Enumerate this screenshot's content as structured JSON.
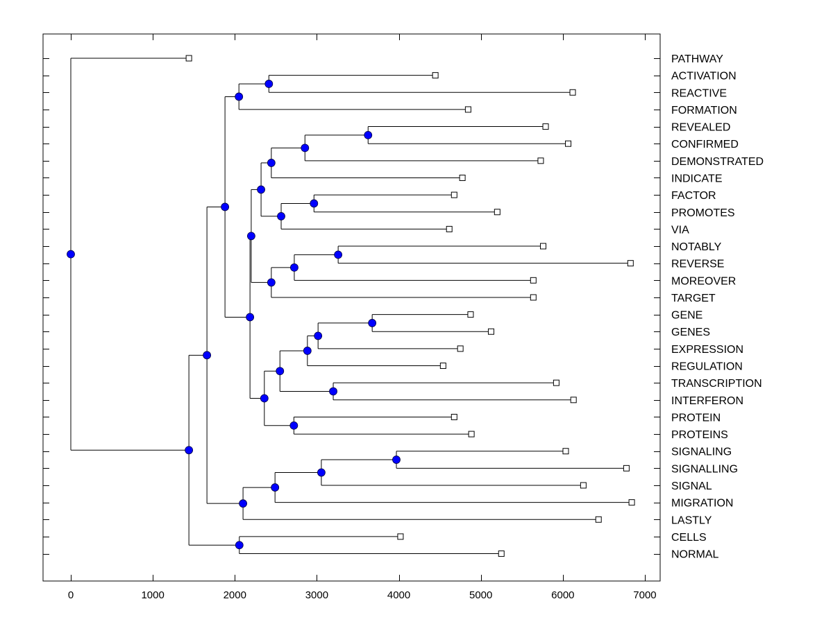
{
  "chart_data": {
    "type": "dendrogram",
    "title": "",
    "xlabel": "",
    "ylabel": "",
    "xlim": [
      -330,
      7200
    ],
    "xticks": [
      0,
      1000,
      2000,
      3000,
      4000,
      5000,
      6000,
      7000
    ],
    "xtick_labels": [
      "0",
      "1000",
      "2000",
      "3000",
      "4000",
      "5000",
      "6000",
      "7000"
    ],
    "grid": false,
    "node_color": "#0000FF",
    "leaf_marker": "open-square",
    "leaves": [
      {
        "label": "PATHWAY",
        "value": 1440
      },
      {
        "label": "ACTIVATION",
        "value": 4445
      },
      {
        "label": "REACTIVE",
        "value": 6120
      },
      {
        "label": "FORMATION",
        "value": 4845
      },
      {
        "label": "REVEALED",
        "value": 5790
      },
      {
        "label": "CONFIRMED",
        "value": 6065
      },
      {
        "label": "DEMONSTRATED",
        "value": 5730
      },
      {
        "label": "INDICATE",
        "value": 4775
      },
      {
        "label": "FACTOR",
        "value": 4675
      },
      {
        "label": "PROMOTES",
        "value": 5200
      },
      {
        "label": "VIA",
        "value": 4615
      },
      {
        "label": "NOTABLY",
        "value": 5760
      },
      {
        "label": "REVERSE",
        "value": 6825
      },
      {
        "label": "MOREOVER",
        "value": 5640
      },
      {
        "label": "TARGET",
        "value": 5640
      },
      {
        "label": "GENE",
        "value": 4875
      },
      {
        "label": "GENES",
        "value": 5125
      },
      {
        "label": "EXPRESSION",
        "value": 4750
      },
      {
        "label": "REGULATION",
        "value": 4540
      },
      {
        "label": "TRANSCRIPTION",
        "value": 5920
      },
      {
        "label": "INTERFERON",
        "value": 6130
      },
      {
        "label": "PROTEIN",
        "value": 4675
      },
      {
        "label": "PROTEINS",
        "value": 4885
      },
      {
        "label": "SIGNALING",
        "value": 6035
      },
      {
        "label": "SIGNALLING",
        "value": 6775
      },
      {
        "label": "SIGNAL",
        "value": 6250
      },
      {
        "label": "MIGRATION",
        "value": 6840
      },
      {
        "label": "LASTLY",
        "value": 6435
      },
      {
        "label": "CELLS",
        "value": 4020
      },
      {
        "label": "NORMAL",
        "value": 5250
      }
    ],
    "tree": {
      "value": 0,
      "children": [
        {
          "leaf": "PATHWAY"
        },
        {
          "value": 1440,
          "children": [
            {
              "value": 1660,
              "children": [
                {
                  "value": 1880,
                  "children": [
                    {
                      "value": 2050,
                      "children": [
                        {
                          "value": 2415,
                          "children": [
                            {
                              "leaf": "ACTIVATION"
                            },
                            {
                              "leaf": "REACTIVE"
                            }
                          ]
                        },
                        {
                          "leaf": "FORMATION"
                        }
                      ]
                    },
                    {
                      "value": 2185,
                      "children": [
                        {
                          "value": 2200,
                          "children": [
                            {
                              "value": 2320,
                              "children": [
                                {
                                  "value": 2445,
                                  "children": [
                                    {
                                      "value": 2855,
                                      "children": [
                                        {
                                          "value": 3625,
                                          "children": [
                                            {
                                              "leaf": "REVEALED"
                                            },
                                            {
                                              "leaf": "CONFIRMED"
                                            }
                                          ]
                                        },
                                        {
                                          "leaf": "DEMONSTRATED"
                                        }
                                      ]
                                    },
                                    {
                                      "leaf": "INDICATE"
                                    }
                                  ]
                                },
                                {
                                  "value": 2565,
                                  "children": [
                                    {
                                      "value": 2965,
                                      "children": [
                                        {
                                          "leaf": "FACTOR"
                                        },
                                        {
                                          "leaf": "PROMOTES"
                                        }
                                      ]
                                    },
                                    {
                                      "leaf": "VIA"
                                    }
                                  ]
                                }
                              ]
                            },
                            {
                              "value": 2445,
                              "children": [
                                {
                                  "value": 2725,
                                  "children": [
                                    {
                                      "value": 3260,
                                      "children": [
                                        {
                                          "leaf": "NOTABLY"
                                        },
                                        {
                                          "leaf": "REVERSE"
                                        }
                                      ]
                                    },
                                    {
                                      "leaf": "MOREOVER"
                                    }
                                  ]
                                },
                                {
                                  "leaf": "TARGET"
                                }
                              ]
                            }
                          ]
                        },
                        {
                          "value": 2360,
                          "children": [
                            {
                              "value": 2550,
                              "children": [
                                {
                                  "value": 2885,
                                  "children": [
                                    {
                                      "value": 3015,
                                      "children": [
                                        {
                                          "value": 3675,
                                          "children": [
                                            {
                                              "leaf": "GENE"
                                            },
                                            {
                                              "leaf": "GENES"
                                            }
                                          ]
                                        },
                                        {
                                          "leaf": "EXPRESSION"
                                        }
                                      ]
                                    },
                                    {
                                      "leaf": "REGULATION"
                                    }
                                  ]
                                },
                                {
                                  "value": 3200,
                                  "children": [
                                    {
                                      "leaf": "TRANSCRIPTION"
                                    },
                                    {
                                      "leaf": "INTERFERON"
                                    }
                                  ]
                                }
                              ]
                            },
                            {
                              "value": 2720,
                              "children": [
                                {
                                  "leaf": "PROTEIN"
                                },
                                {
                                  "leaf": "PROTEINS"
                                }
                              ]
                            }
                          ]
                        }
                      ]
                    }
                  ]
                },
                {
                  "value": 2100,
                  "children": [
                    {
                      "value": 2490,
                      "children": [
                        {
                          "value": 3055,
                          "children": [
                            {
                              "value": 3970,
                              "children": [
                                {
                                  "leaf": "SIGNALING"
                                },
                                {
                                  "leaf": "SIGNALLING"
                                }
                              ]
                            },
                            {
                              "leaf": "SIGNAL"
                            }
                          ]
                        },
                        {
                          "leaf": "MIGRATION"
                        }
                      ]
                    },
                    {
                      "leaf": "LASTLY"
                    }
                  ]
                }
              ]
            },
            {
              "value": 2055,
              "children": [
                {
                  "leaf": "CELLS"
                },
                {
                  "leaf": "NORMAL"
                }
              ]
            }
          ]
        }
      ]
    }
  }
}
